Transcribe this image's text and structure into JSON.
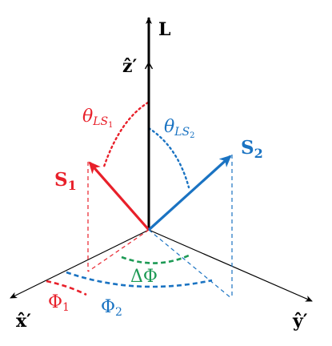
{
  "colors": {
    "black": "#000000",
    "red": "#e8202a",
    "blue": "#1a73c2",
    "green": "#1d9a55"
  },
  "labels": {
    "L": "L",
    "z": "ẑ′",
    "x": "x̂′",
    "y": "ŷ′",
    "s1": {
      "main": "S",
      "sub": "1"
    },
    "s2": {
      "main": "S",
      "sub": "2"
    },
    "theta1": {
      "main": "θ",
      "sub": "LS",
      "subsub": "1"
    },
    "theta2": {
      "main": "θ",
      "sub": "LS",
      "subsub": "2"
    },
    "phi1": {
      "main": "Φ",
      "sub": "1"
    },
    "phi2": {
      "main": "Φ",
      "sub": "2"
    },
    "dphi": "ΔΦ"
  }
}
